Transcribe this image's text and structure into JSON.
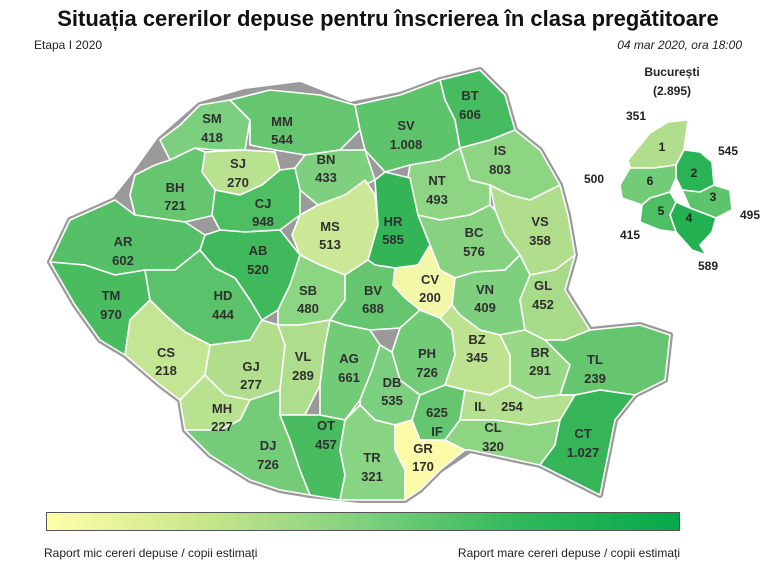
{
  "title": "Situația cererilor depuse pentru înscrierea în clasa pregătitoare",
  "stage": "Etapa I 2020",
  "date": "04 mar 2020, ora 18:00",
  "legend": {
    "low": "Raport mic cereri depuse / copii estimați",
    "high": "Raport mare cereri depuse / copii estimați",
    "low_color": "#ffffa8",
    "high_color": "#05a94a"
  },
  "counties": {
    "SM": {
      "code": "SM",
      "value": "418"
    },
    "MM": {
      "code": "MM",
      "value": "544"
    },
    "BT": {
      "code": "BT",
      "value": "606"
    },
    "SV": {
      "code": "SV",
      "value": "1.008"
    },
    "SJ": {
      "code": "SJ",
      "value": "270"
    },
    "BN": {
      "code": "BN",
      "value": "433"
    },
    "IS": {
      "code": "IS",
      "value": "803"
    },
    "BH": {
      "code": "BH",
      "value": "721"
    },
    "CJ": {
      "code": "CJ",
      "value": "948"
    },
    "NT": {
      "code": "NT",
      "value": "493"
    },
    "MS": {
      "code": "MS",
      "value": "513"
    },
    "HR": {
      "code": "HR",
      "value": "585"
    },
    "VS": {
      "code": "VS",
      "value": "358"
    },
    "AR": {
      "code": "AR",
      "value": "602"
    },
    "AB": {
      "code": "AB",
      "value": "520"
    },
    "BC": {
      "code": "BC",
      "value": "576"
    },
    "CV": {
      "code": "CV",
      "value": "200"
    },
    "TM": {
      "code": "TM",
      "value": "970"
    },
    "HD": {
      "code": "HD",
      "value": "444"
    },
    "SB": {
      "code": "SB",
      "value": "480"
    },
    "BV": {
      "code": "BV",
      "value": "688"
    },
    "VN": {
      "code": "VN",
      "value": "409"
    },
    "GL": {
      "code": "GL",
      "value": "452"
    },
    "CS": {
      "code": "CS",
      "value": "218"
    },
    "GJ": {
      "code": "GJ",
      "value": "277"
    },
    "VL": {
      "code": "VL",
      "value": "289"
    },
    "AG": {
      "code": "AG",
      "value": "661"
    },
    "PH": {
      "code": "PH",
      "value": "726"
    },
    "BZ": {
      "code": "BZ",
      "value": "345"
    },
    "BR": {
      "code": "BR",
      "value": "291"
    },
    "TL": {
      "code": "TL",
      "value": "239"
    },
    "MH": {
      "code": "MH",
      "value": "227"
    },
    "DB": {
      "code": "DB",
      "value": "535"
    },
    "IF": {
      "code": "IF",
      "value": "625"
    },
    "IL": {
      "code": "IL",
      "value": "254"
    },
    "DJ": {
      "code": "DJ",
      "value": "726"
    },
    "OT": {
      "code": "OT",
      "value": "457"
    },
    "TR": {
      "code": "TR",
      "value": "321"
    },
    "GR": {
      "code": "GR",
      "value": "170"
    },
    "CL": {
      "code": "CL",
      "value": "320"
    },
    "CT": {
      "code": "CT",
      "value": "1.027"
    }
  },
  "bucharest": {
    "name": "București",
    "total": "(2.895)",
    "sectors": [
      {
        "num": "1",
        "value": "351"
      },
      {
        "num": "2",
        "value": "545"
      },
      {
        "num": "3",
        "value": "495"
      },
      {
        "num": "4",
        "value": "589"
      },
      {
        "num": "5",
        "value": "415"
      },
      {
        "num": "6",
        "value": "500"
      }
    ]
  }
}
